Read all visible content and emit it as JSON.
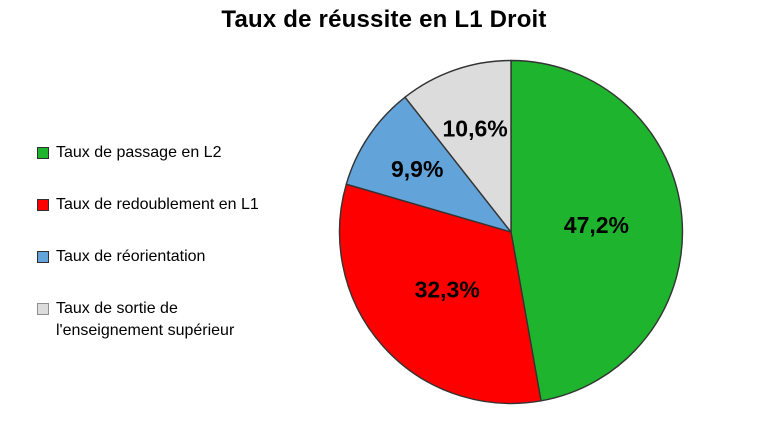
{
  "page": {
    "background": "#ffffff"
  },
  "title": "Taux de réussite en L1 Droit",
  "legend": {
    "position": "left",
    "items": [
      {
        "label": "Taux de passage en L2",
        "color": "#1FB42D",
        "border": "#2f2f2f"
      },
      {
        "label": "Taux de redoublement en L1",
        "color": "#FF0000",
        "border": "#2f2f2f"
      },
      {
        "label": "Taux de réorientation",
        "color": "#62A3D9",
        "border": "#2f2f2f"
      },
      {
        "label": "Taux de sortie de\nl'enseignement supérieur",
        "color": "#DCDCDC",
        "border": "#8f8f8f"
      }
    ]
  },
  "chart_data": {
    "type": "pie",
    "title": "Taux de réussite en L1 Droit",
    "categories": [
      "Taux de passage en L2",
      "Taux de redoublement en L1",
      "Taux de réorientation",
      "Taux de sortie de l'enseignement supérieur"
    ],
    "values": [
      47.2,
      32.3,
      9.9,
      10.6
    ],
    "value_labels": [
      "47,2%",
      "32,3%",
      "9,9%",
      "10,6%"
    ],
    "colors": [
      "#1FB42D",
      "#FF0000",
      "#62A3D9",
      "#DCDCDC"
    ],
    "slice_border_color": "#333333",
    "label_color": "#000000",
    "start_angle_deg": 0,
    "direction": "clockwise",
    "legend_position": "left"
  }
}
